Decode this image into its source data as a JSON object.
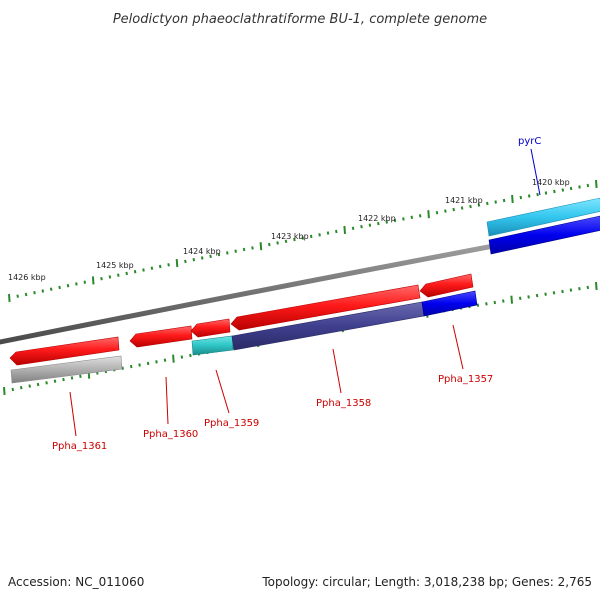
{
  "title": "Pelodictyon phaeoclathratiforme BU-1, complete genome",
  "footer": {
    "accession": "Accession: NC_011060",
    "summary": "Topology: circular; Length: 3,018,238 bp; Genes: 2,765"
  },
  "kbp_labels": [
    "1426 kbp",
    "1425 kbp",
    "1424 kbp",
    "1423 kbp",
    "1422 kbp",
    "1421 kbp",
    "1420 kbp"
  ],
  "genes": [
    {
      "name": "Ppha_1361",
      "strand": "reverse",
      "color": "#e8000b"
    },
    {
      "name": "Ppha_1360",
      "strand": "reverse",
      "color": "#e8000b"
    },
    {
      "name": "Ppha_1359",
      "strand": "reverse",
      "color": "#e8000b"
    },
    {
      "name": "Ppha_1358",
      "strand": "reverse",
      "color": "#e8000b"
    },
    {
      "name": "Ppha_1357",
      "strand": "reverse",
      "color": "#e8000b"
    },
    {
      "name": "pyrC",
      "strand": "forward",
      "color": "#33c6ee"
    }
  ],
  "colors": {
    "backbone": "#7a7a7a",
    "tick": "#2a8a2a",
    "reverse_gene": "#e8000b",
    "forward_gene": "#33c6ee",
    "label_reverse": "#cc0000",
    "label_forward": "#0000cc",
    "cog_blue": "#0000ee",
    "cog_navy": "#3f3f8f",
    "cog_cyan": "#2ec4c4",
    "cog_grey": "#b0b0b0"
  }
}
